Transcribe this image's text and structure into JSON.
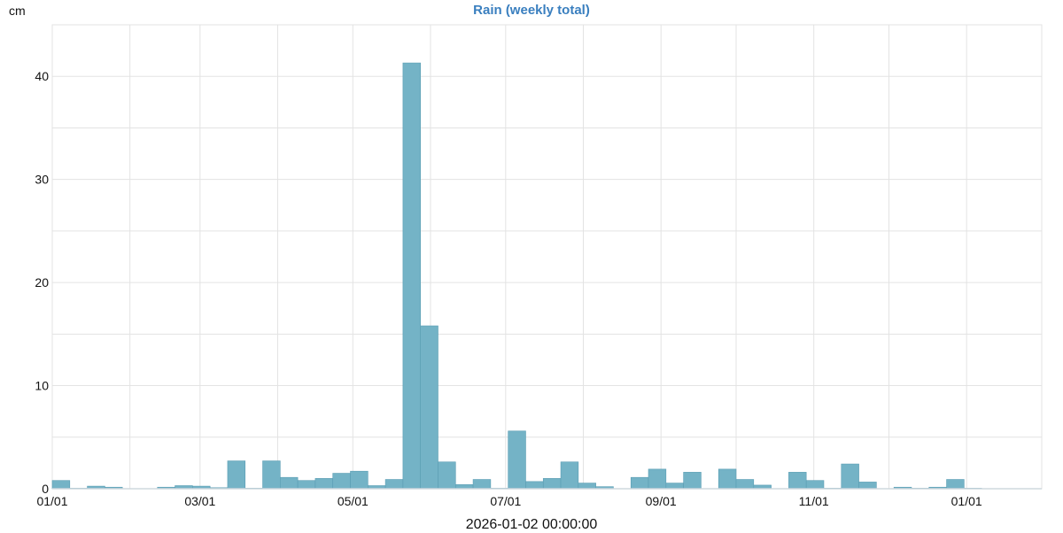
{
  "chart_data": {
    "type": "bar",
    "title": "Rain (weekly total)",
    "ylabel": "cm",
    "xlabel": "2026-01-02 00:00:00",
    "ylim": [
      0,
      45
    ],
    "xlim": [
      "2025-01-01",
      "2026-01-31"
    ],
    "grid": true,
    "y_ticks": [
      0,
      10,
      20,
      30,
      40
    ],
    "x_tick_labels": [
      "01/01",
      "03/01",
      "05/01",
      "07/01",
      "09/01",
      "11/01",
      "01/01"
    ],
    "x_tick_months": [
      0,
      2,
      4,
      6,
      8,
      10,
      12
    ],
    "bar_start": "2025-01-01",
    "bar_width_days": 7,
    "values": [
      0.8,
      0.05,
      0.25,
      0.15,
      0,
      0,
      0.15,
      0.3,
      0.25,
      0.1,
      2.7,
      0.05,
      2.7,
      1.1,
      0.8,
      1.0,
      1.5,
      1.7,
      0.3,
      0.9,
      41.3,
      15.8,
      2.6,
      0.4,
      0.9,
      0.05,
      5.6,
      0.7,
      1.0,
      2.6,
      0.55,
      0.2,
      0,
      1.1,
      1.9,
      0.55,
      1.6,
      0,
      1.9,
      0.9,
      0.35,
      0,
      1.6,
      0.8,
      0.05,
      2.4,
      0.65,
      0,
      0.15,
      0.05,
      0.15,
      0.9,
      0.05
    ],
    "colors": {
      "bar": "#74b3c6",
      "bar_edge": "#5a9db3",
      "title": "#3a7fbf",
      "grid": "#e3e3e3"
    }
  }
}
